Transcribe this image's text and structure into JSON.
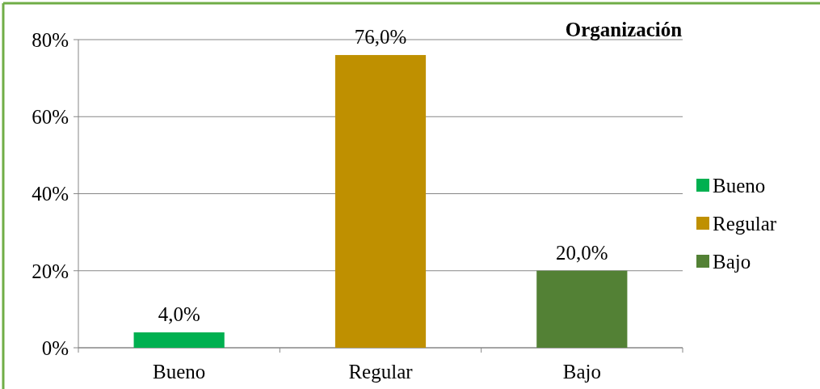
{
  "chart_data": {
    "type": "bar",
    "title": "Organización",
    "categories": [
      "Bueno",
      "Regular",
      "Bajo"
    ],
    "series": [
      {
        "name": "Bueno",
        "color": "#00b050",
        "values": [
          4,
          null,
          null
        ],
        "value_labels": [
          "4,0%",
          null,
          null
        ]
      },
      {
        "name": "Regular",
        "color": "#bf9000",
        "values": [
          null,
          76,
          null
        ],
        "value_labels": [
          null,
          "76,0%",
          null
        ]
      },
      {
        "name": "Bajo",
        "color": "#538135",
        "values": [
          null,
          null,
          20
        ],
        "value_labels": [
          null,
          null,
          "20,0%"
        ]
      }
    ],
    "ylim": [
      0,
      80
    ],
    "yticks": [
      {
        "value": 0,
        "label": "0%"
      },
      {
        "value": 20,
        "label": "20%"
      },
      {
        "value": 40,
        "label": "40%"
      },
      {
        "value": 60,
        "label": "60%"
      },
      {
        "value": 80,
        "label": "80%"
      }
    ],
    "grid": "y",
    "legend": "right"
  }
}
